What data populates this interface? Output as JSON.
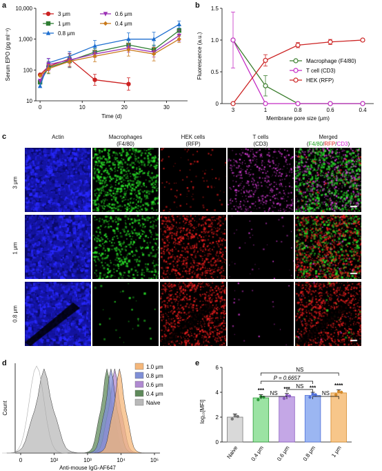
{
  "panel_letters": {
    "a": "a",
    "b": "b",
    "c": "c",
    "d": "d",
    "e": "e"
  },
  "chart_data": [
    {
      "panel": "a",
      "type": "line",
      "ylabel": "Serum EPO (pg ml⁻¹)",
      "xlabel": "Time (d)",
      "ylog": true,
      "ylim": [
        10,
        10000
      ],
      "xlim": [
        -1,
        35
      ],
      "xticks": [
        "0",
        "10",
        "20",
        "30"
      ],
      "yticks": [
        "10",
        "100",
        "1,000",
        "10,000"
      ],
      "legend_placement": "top-left",
      "series": [
        {
          "name": "3 μm",
          "color": "#cc2222",
          "marker": "circle",
          "x": [
            0,
            2,
            7,
            13,
            21
          ],
          "y": [
            70,
            130,
            230,
            48,
            35
          ]
        },
        {
          "name": "1 μm",
          "color": "#2e7d32",
          "marker": "square",
          "x": [
            0,
            2,
            7,
            13,
            21,
            27,
            33
          ],
          "y": [
            40,
            120,
            200,
            380,
            650,
            450,
            1900
          ]
        },
        {
          "name": "0.8 μm",
          "color": "#1e6fd0",
          "marker": "triangle",
          "x": [
            0,
            2,
            7,
            13,
            21,
            27,
            33
          ],
          "y": [
            30,
            170,
            280,
            600,
            1000,
            1000,
            3000
          ]
        },
        {
          "name": "0.6 μm",
          "color": "#9b30b5",
          "marker": "triangle-down",
          "x": [
            0,
            2,
            7,
            13,
            21,
            27,
            33
          ],
          "y": [
            45,
            150,
            210,
            330,
            520,
            380,
            1300
          ]
        },
        {
          "name": "0.4 μm",
          "color": "#c9791b",
          "marker": "diamond",
          "x": [
            0,
            2,
            7,
            13,
            21,
            27,
            33
          ],
          "y": [
            65,
            110,
            190,
            280,
            450,
            330,
            1000
          ]
        }
      ]
    },
    {
      "panel": "b",
      "type": "line",
      "ylabel": "Fluorescence (a.u.)",
      "xlabel": "Membrane pore size (μm)",
      "categories": [
        "3",
        "1",
        "0.8",
        "0.6",
        "0.4"
      ],
      "ylim": [
        0,
        1.5
      ],
      "yticks": [
        "0",
        "0.5",
        "1.0",
        "1.5"
      ],
      "legend_placement": "center-right",
      "series": [
        {
          "name": "Macrophage (F4/80)",
          "color": "#3a7d2c",
          "values": [
            1.0,
            0.28,
            0.0,
            0.0,
            0.0
          ]
        },
        {
          "name": "T cell (CD3)",
          "color": "#c42bc4",
          "values": [
            1.0,
            0.0,
            0.0,
            0.0,
            0.0
          ]
        },
        {
          "name": "HEK (RFP)",
          "color": "#cc2222",
          "values": [
            0.0,
            0.68,
            0.92,
            0.97,
            1.0
          ]
        }
      ]
    },
    {
      "panel": "d",
      "type": "area",
      "xlabel": "Anti-mouse IgG-AF647",
      "ylabel": "Count",
      "xlog": true,
      "xticks": [
        "0",
        "10²",
        "10³",
        "10⁴",
        "10⁵"
      ],
      "legend_placement": "top-right",
      "series": [
        {
          "name": "1.0 μm",
          "color": "#f5b77a",
          "peak": 9000
        },
        {
          "name": "0.8 μm",
          "color": "#7f8fd6",
          "peak": 5000
        },
        {
          "name": "0.6 μm",
          "color": "#b08ad1",
          "peak": 6500
        },
        {
          "name": "0.4 μm",
          "color": "#5f8a5b",
          "peak": 3800
        },
        {
          "name": "Naive",
          "color": "#b9b9b9",
          "peak": 50
        }
      ]
    },
    {
      "panel": "e",
      "type": "bar",
      "ylabel": "log₁₀[MFI]",
      "categories": [
        "Naive",
        "0.4 μm",
        "0.6 μm",
        "0.8 μm",
        "1 μm"
      ],
      "values": [
        2.0,
        3.55,
        3.65,
        3.75,
        3.95
      ],
      "colors": [
        "#d9d9d9",
        "#9be3a3",
        "#c4a7e6",
        "#9bb6f2",
        "#f7c68a"
      ],
      "ylim": [
        0,
        6
      ],
      "yticks": [
        "0",
        "2",
        "4",
        "6"
      ],
      "stars": [
        "",
        "***",
        "***",
        "***",
        "****"
      ],
      "annotations": [
        "NS",
        "P = 0.6657",
        "NS",
        "NS",
        "NS"
      ]
    }
  ],
  "micrographs": {
    "columns": [
      "Actin",
      "Macrophages\n(F4/80)",
      "HEK cells\n(RFP)",
      "T cells\n(CD3)"
    ],
    "merged_title": "Merged",
    "merged_parts": [
      "(",
      "F4/80",
      "/",
      "RFP",
      "/",
      "CD3",
      ")"
    ],
    "merged_colors": {
      "f480": "#1aa31a",
      "rfp": "#e01a1a",
      "cd3": "#d61ad6"
    },
    "rows": [
      "3 μm",
      "1 μm",
      "0.8 μm"
    ]
  }
}
